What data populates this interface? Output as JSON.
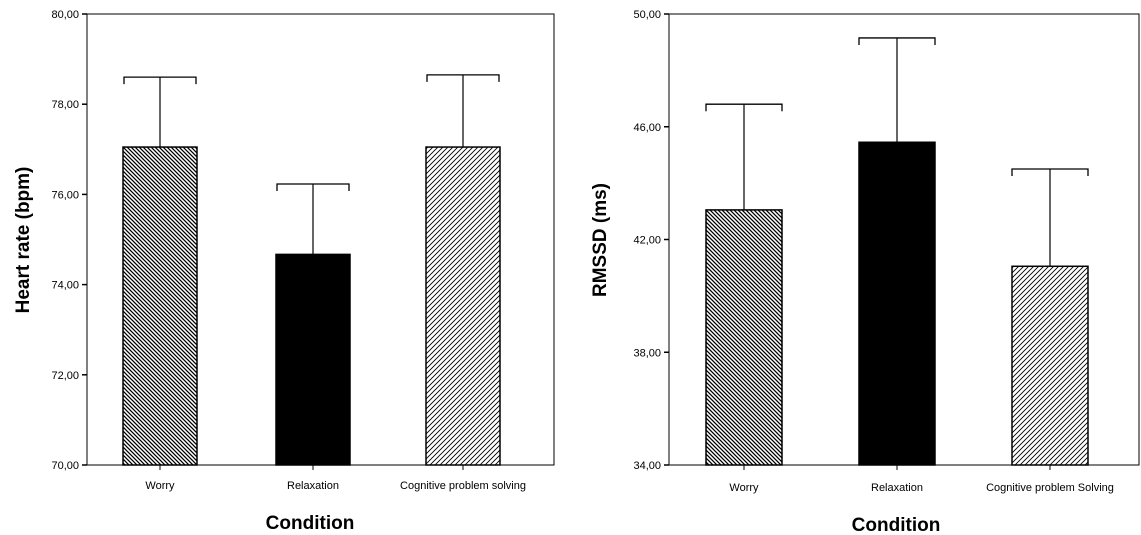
{
  "chart_data": [
    {
      "type": "bar",
      "categories": [
        "Worry",
        "Relaxation",
        "Cognitive problem solving"
      ],
      "values": [
        77.05,
        74.67,
        77.05
      ],
      "error_upper": [
        78.6,
        76.23,
        78.65
      ],
      "xlabel": "Condition",
      "ylabel": "Heart rate (bpm)",
      "ylim": [
        70,
        80
      ],
      "yticks": [
        "70,00",
        "72,00",
        "74,00",
        "76,00",
        "78,00",
        "80,00"
      ],
      "ytick_values": [
        70,
        72,
        74,
        76,
        78,
        80
      ],
      "bar_fills": [
        "dense-backslash",
        "solid-black",
        "light-forward-slash"
      ]
    },
    {
      "type": "bar",
      "categories": [
        "Worry",
        "Relaxation",
        "Cognitive problem  Solving"
      ],
      "values": [
        43.05,
        45.45,
        41.05
      ],
      "error_upper": [
        46.8,
        49.15,
        44.5
      ],
      "xlabel": "Condition",
      "ylabel": "RMSSD (ms)",
      "ylim": [
        34,
        50
      ],
      "yticks": [
        "34,00",
        "38,00",
        "42,00",
        "46,00",
        "50,00"
      ],
      "ytick_values": [
        34,
        38,
        42,
        46,
        50
      ],
      "bar_fills": [
        "dense-backslash",
        "solid-black",
        "light-forward-slash"
      ]
    }
  ]
}
